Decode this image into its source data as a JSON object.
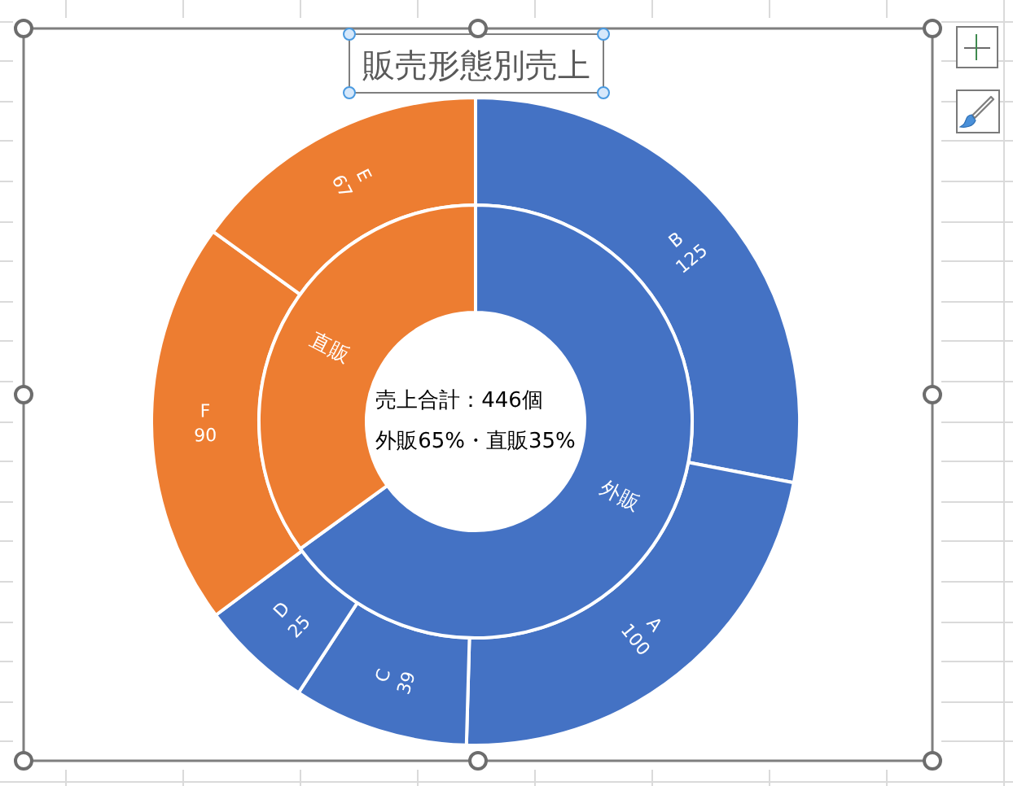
{
  "chart_data": [
    {
      "type": "donut",
      "title": "販売形態別売上",
      "categories": [
        "B",
        "A",
        "C",
        "D",
        "F",
        "E"
      ],
      "values": [
        125,
        100,
        39,
        25,
        90,
        67
      ],
      "colors": [
        "#4472c4",
        "#4472c4",
        "#4472c4",
        "#4472c4",
        "#ed7d31",
        "#ed7d31"
      ],
      "data_labels": true
    },
    {
      "type": "donut",
      "categories": [
        "外販",
        "直販"
      ],
      "values": [
        65,
        35
      ],
      "colors": [
        "#4472c4",
        "#ed7d31"
      ],
      "annotations": [
        "売上合計：446個",
        "外販65%・直販35%"
      ]
    }
  ]
}
